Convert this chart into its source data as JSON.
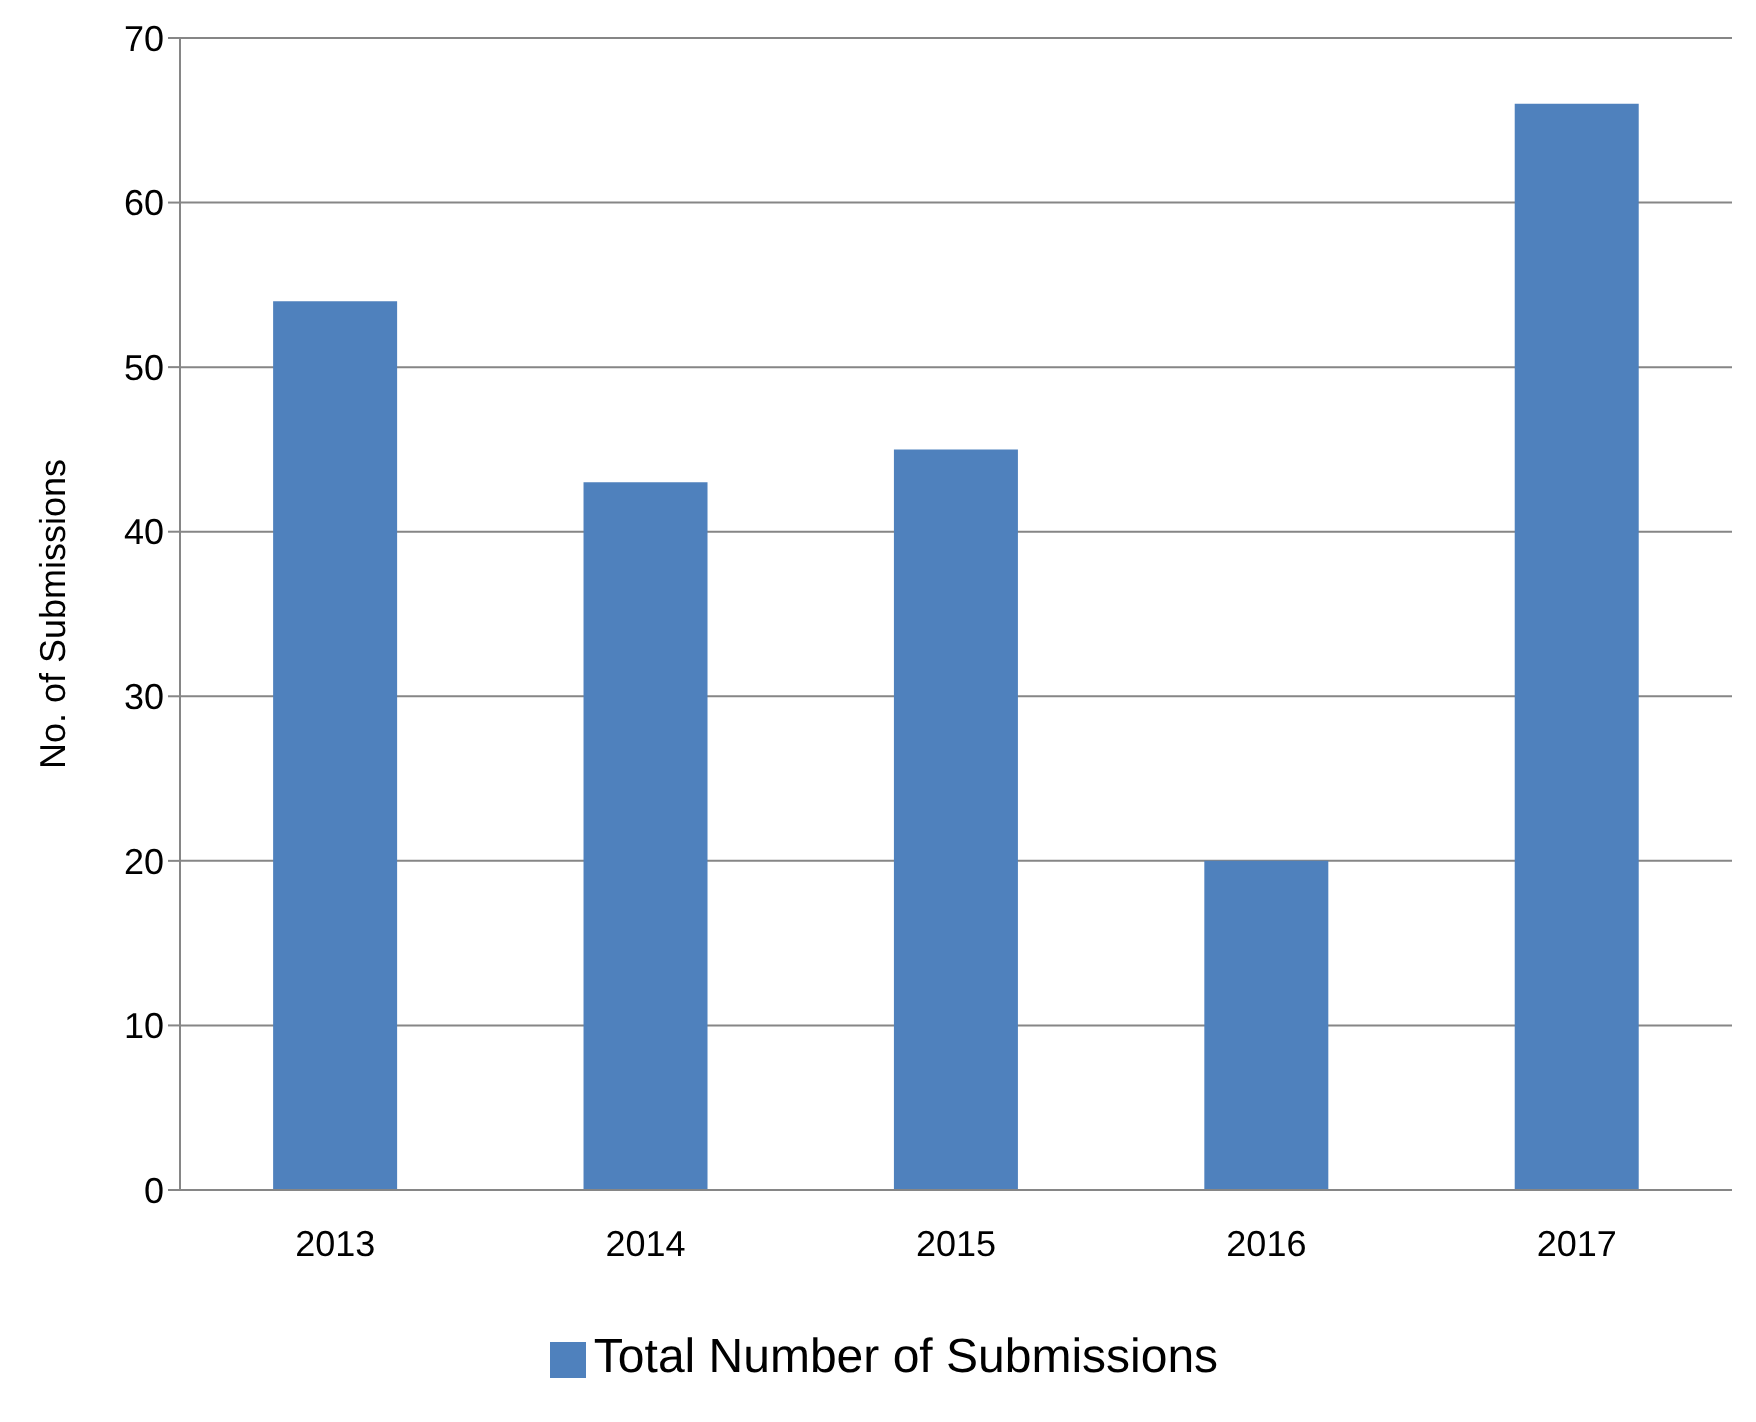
{
  "chart_data": {
    "type": "bar",
    "ylabel": "No. of Submissions",
    "categories": [
      "2013",
      "2014",
      "2015",
      "2016",
      "2017"
    ],
    "series": [
      {
        "name": "Total Number of Submissions",
        "color": "#4f81bd",
        "values": [
          54,
          43,
          45,
          20,
          66
        ]
      }
    ],
    "ylim": [
      0,
      70
    ],
    "yticks": [
      0,
      10,
      20,
      30,
      40,
      50,
      60,
      70
    ],
    "grid": "y",
    "legend": "bottom"
  }
}
